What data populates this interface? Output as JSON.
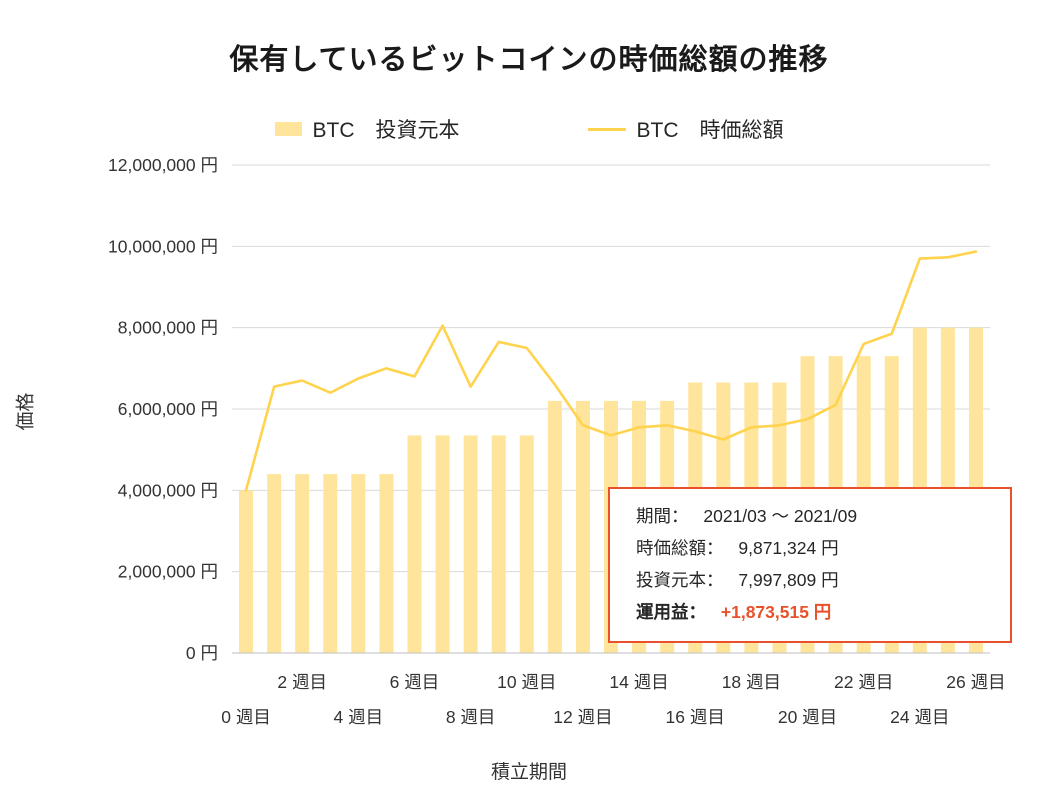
{
  "title": "保有しているビットコインの時価総額の推移",
  "legend": {
    "items": [
      {
        "label": "BTC　投資元本",
        "swatch": "bar"
      },
      {
        "label": "BTC　時価総額",
        "swatch": "line"
      }
    ]
  },
  "colors": {
    "bar": "#FFE49B",
    "line": "#FFD34D",
    "grid": "#D9D9D9",
    "axis": "#BFBFBF",
    "box_border": "#E8512B",
    "highlight": "#E8512B",
    "text": "#333333"
  },
  "chart_data": {
    "type": "bar+line",
    "title": "保有しているビットコインの時価総額の推移",
    "xlabel": "積立期間",
    "ylabel": "価格",
    "ylim": [
      0,
      12000000
    ],
    "ytick_step": 2000000,
    "x": [
      0,
      1,
      2,
      3,
      4,
      5,
      6,
      7,
      8,
      9,
      10,
      11,
      12,
      13,
      14,
      15,
      16,
      17,
      18,
      19,
      20,
      21,
      22,
      23,
      24,
      25,
      26
    ],
    "series": [
      {
        "name": "BTC 投資元本",
        "type": "bar",
        "values": [
          4000000,
          4400000,
          4400000,
          4400000,
          4400000,
          4400000,
          5350000,
          5350000,
          5350000,
          5350000,
          5350000,
          6200000,
          6200000,
          6200000,
          6200000,
          6200000,
          6650000,
          6650000,
          6650000,
          6650000,
          7300000,
          7300000,
          7300000,
          7300000,
          8000000,
          8000000,
          8000000
        ]
      },
      {
        "name": "BTC 時価総額",
        "type": "line",
        "values": [
          4000000,
          6550000,
          6700000,
          6400000,
          6750000,
          7000000,
          6800000,
          8050000,
          6550000,
          7650000,
          7500000,
          6600000,
          5600000,
          5350000,
          5550000,
          5600000,
          5450000,
          5250000,
          5550000,
          5600000,
          5750000,
          6100000,
          7600000,
          7850000,
          9700000,
          9730000,
          9871324
        ]
      }
    ],
    "y_ticks": [
      {
        "value": 0,
        "label": "0 円"
      },
      {
        "value": 2000000,
        "label": "2,000,000 円"
      },
      {
        "value": 4000000,
        "label": "4,000,000 円"
      },
      {
        "value": 6000000,
        "label": "6,000,000 円"
      },
      {
        "value": 8000000,
        "label": "8,000,000 円"
      },
      {
        "value": 10000000,
        "label": "10,000,000 円"
      },
      {
        "value": 12000000,
        "label": "12,000,000 円"
      }
    ],
    "x_ticks": [
      {
        "week": 0,
        "label": "0 週目",
        "row": "far"
      },
      {
        "week": 2,
        "label": "2 週目",
        "row": "near"
      },
      {
        "week": 4,
        "label": "4 週目",
        "row": "far"
      },
      {
        "week": 6,
        "label": "6 週目",
        "row": "near"
      },
      {
        "week": 8,
        "label": "8 週目",
        "row": "far"
      },
      {
        "week": 10,
        "label": "10 週目",
        "row": "near"
      },
      {
        "week": 12,
        "label": "12 週目",
        "row": "far"
      },
      {
        "week": 14,
        "label": "14 週目",
        "row": "near"
      },
      {
        "week": 16,
        "label": "16 週目",
        "row": "far"
      },
      {
        "week": 18,
        "label": "18 週目",
        "row": "near"
      },
      {
        "week": 20,
        "label": "20 週目",
        "row": "far"
      },
      {
        "week": 22,
        "label": "22 週目",
        "row": "near"
      },
      {
        "week": 24,
        "label": "24 週目",
        "row": "far"
      },
      {
        "week": 26,
        "label": "26 週目",
        "row": "near"
      }
    ]
  },
  "info_box": {
    "rows": [
      {
        "label": "期間：",
        "value": "2021/03 ～ 2021/09"
      },
      {
        "label": "時価総額：",
        "value": "9,871,324 円"
      },
      {
        "label": "投資元本：",
        "value": "7,997,809 円"
      },
      {
        "label": "運用益：",
        "value": "+1,873,515 円",
        "highlight": true
      }
    ]
  }
}
